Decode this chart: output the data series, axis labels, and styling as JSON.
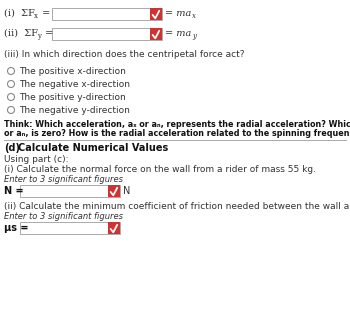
{
  "bg_color": "#ffffff",
  "line_color": "#aaaaaa",
  "checkbox_color": "#cc3333",
  "text_color": "#333333",
  "bold_text_color": "#111111",
  "input_box_color": "#ffffff",
  "input_box_border": "#aaaaaa",
  "row1_label": "(i)  ΣF",
  "row1_sub": "x",
  "row1_eq": " =",
  "row1_rhs": "= ma",
  "row1_rhs_sub": "x",
  "row2_label": "(ii)  ΣF",
  "row2_sub": "y",
  "row2_eq": " =",
  "row2_rhs": "= ma",
  "row2_rhs_sub": "y",
  "row3_label": "(iii) In which direction does the centripetal force act?",
  "options": [
    "The positive x-direction",
    "The negative x-direction",
    "The positive y-direction",
    "The negative y-direction"
  ],
  "think_bold": "Think: Which acceleration, a",
  "think_rest1": " or a",
  "think_rest2": ", represents the radial acceleration? Which acceleration, a",
  "think_rest3": "",
  "think_line2": "or a",
  "think_line2b": ", is zero? How is the radial acceleration related to the spinning frequency?",
  "section_d_title": "(d)   Calculate Numerical Values",
  "using_part": "Using part (c):",
  "calc_i": "(i) Calculate the normal force on the wall from a rider of mass 55 kg.",
  "enter_sig1": "Enter to 3 significant figures",
  "N_label": "N =",
  "N_unit": "N",
  "calc_ii": "(ii) Calculate the minimum coefficient of friction needed between the wall and the person.",
  "enter_sig2": "Enter to 3 significant figures",
  "mu_label": "μs ="
}
